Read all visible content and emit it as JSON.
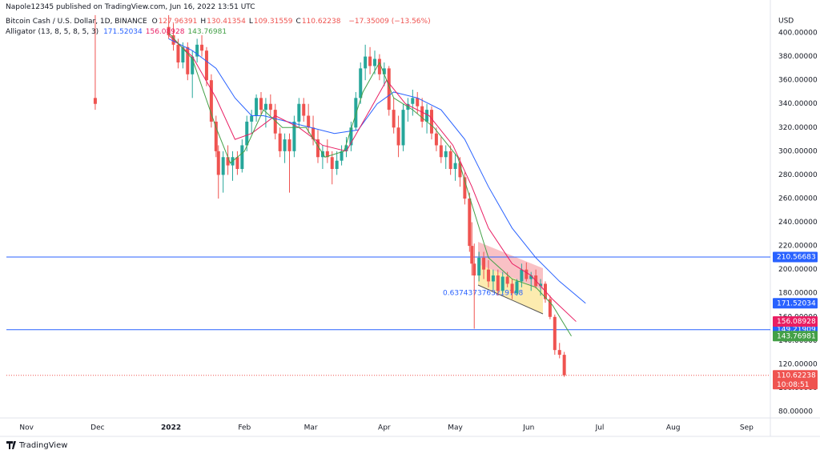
{
  "header": {
    "published": "Napole12345 published on TradingView.com, Jun 16, 2022 13:51 UTC",
    "symbol": "Bitcoin Cash / U.S. Dollar, 1D, BINANCE",
    "ohlc": [
      {
        "label": "O",
        "value": 127.96391
      },
      {
        "label": "H",
        "value": 130.41354
      },
      {
        "label": "L",
        "value": 109.31559
      },
      {
        "label": "C",
        "value": 110.62238
      }
    ],
    "change": "−17.35009 (−13.56%)",
    "indicator": "Alligator (13, 8, 5, 8, 5, 3)"
  },
  "footer": {
    "brand": "TradingView"
  },
  "chart_data": {
    "type": "candlestick",
    "currency": "USD",
    "xlim": [
      -8.5,
      314
    ],
    "ylim": [
      74.6,
      415.6
    ],
    "xticks": [
      {
        "value": 0,
        "label": "Nov"
      },
      {
        "value": 30,
        "label": "Dec"
      },
      {
        "value": 61,
        "label": "2022",
        "bold": true
      },
      {
        "value": 92,
        "label": "Feb"
      },
      {
        "value": 120,
        "label": "Mar"
      },
      {
        "value": 151,
        "label": "Apr"
      },
      {
        "value": 181,
        "label": "May"
      },
      {
        "value": 212,
        "label": "Jun"
      },
      {
        "value": 242,
        "label": "Jul"
      },
      {
        "value": 273,
        "label": "Aug"
      },
      {
        "value": 304,
        "label": "Sep"
      }
    ],
    "yticks": [
      {
        "value": 80,
        "label": "80.00000"
      },
      {
        "value": 100,
        "label": "100.00000"
      },
      {
        "value": 120,
        "label": "120.00000"
      },
      {
        "value": 140,
        "label": "140.00000"
      },
      {
        "value": 160,
        "label": "160.00000"
      },
      {
        "value": 180,
        "label": "180.00000"
      },
      {
        "value": 200,
        "label": "200.00000"
      },
      {
        "value": 220,
        "label": "220.00000"
      },
      {
        "value": 240,
        "label": "240.00000"
      },
      {
        "value": 260,
        "label": "260.00000"
      },
      {
        "value": 280,
        "label": "280.00000"
      },
      {
        "value": 300,
        "label": "300.00000"
      },
      {
        "value": 320,
        "label": "320.00000"
      },
      {
        "value": 340,
        "label": "340.00000"
      },
      {
        "value": 360,
        "label": "360.00000"
      },
      {
        "value": 380,
        "label": "380.00000"
      },
      {
        "value": 400,
        "label": "400.00000"
      }
    ],
    "up_color": "#26a69a",
    "down_color": "#ef5350",
    "candles": {
      "x": [
        29,
        60,
        62,
        64,
        66,
        68,
        70,
        72,
        74,
        76,
        78,
        80,
        81,
        83,
        85,
        87,
        89,
        91,
        93,
        95,
        97,
        99,
        101,
        103,
        105,
        107,
        109,
        111,
        113,
        115,
        117,
        119,
        121,
        123,
        125,
        127,
        129,
        131,
        133,
        135,
        137,
        139,
        141,
        143,
        145,
        147,
        149,
        151,
        153,
        155,
        157,
        159,
        161,
        163,
        165,
        167,
        169,
        171,
        173,
        175,
        177,
        179,
        181,
        183,
        185,
        187,
        188,
        189,
        191,
        193,
        195,
        197,
        199,
        201,
        203,
        205,
        207,
        209,
        211,
        213,
        215,
        217,
        219,
        221,
        223,
        225,
        227
      ],
      "open": [
        345,
        405,
        398,
        390,
        375,
        388,
        365,
        380,
        390,
        385,
        360,
        325,
        300,
        280,
        295,
        288,
        295,
        285,
        305,
        325,
        330,
        345,
        335,
        340,
        335,
        315,
        300,
        310,
        300,
        325,
        340,
        330,
        320,
        310,
        295,
        300,
        295,
        285,
        292,
        300,
        305,
        320,
        345,
        370,
        380,
        372,
        378,
        365,
        370,
        335,
        320,
        305,
        335,
        340,
        345,
        338,
        325,
        335,
        315,
        305,
        295,
        300,
        285,
        290,
        278,
        260,
        220,
        205,
        195,
        210,
        200,
        190,
        195,
        182,
        194,
        188,
        180,
        190,
        200,
        192,
        195,
        186,
        188,
        175,
        160,
        132,
        127.96391
      ],
      "high": [
        415,
        415,
        408,
        395,
        392,
        392,
        385,
        395,
        398,
        388,
        365,
        330,
        305,
        300,
        305,
        300,
        300,
        310,
        330,
        335,
        348,
        350,
        345,
        348,
        340,
        320,
        315,
        315,
        330,
        345,
        345,
        340,
        330,
        318,
        305,
        310,
        300,
        300,
        305,
        312,
        325,
        350,
        375,
        390,
        388,
        385,
        382,
        375,
        372,
        345,
        330,
        340,
        345,
        352,
        350,
        345,
        340,
        338,
        320,
        312,
        305,
        305,
        298,
        295,
        282,
        265,
        240,
        222,
        215,
        215,
        208,
        200,
        200,
        198,
        198,
        192,
        192,
        205,
        206,
        198,
        200,
        192,
        190,
        178,
        162,
        138,
        130.41354
      ],
      "low": [
        335,
        395,
        385,
        370,
        370,
        360,
        345,
        375,
        380,
        355,
        320,
        295,
        260,
        265,
        280,
        275,
        280,
        282,
        300,
        315,
        325,
        330,
        320,
        330,
        310,
        295,
        290,
        265,
        295,
        320,
        325,
        315,
        305,
        290,
        285,
        290,
        272,
        280,
        288,
        295,
        300,
        318,
        340,
        360,
        365,
        365,
        360,
        355,
        330,
        315,
        295,
        300,
        325,
        330,
        332,
        320,
        315,
        310,
        300,
        290,
        285,
        280,
        275,
        270,
        255,
        215,
        195,
        150,
        190,
        192,
        185,
        183,
        178,
        180,
        185,
        175,
        178,
        185,
        190,
        182,
        184,
        178,
        172,
        158,
        128,
        125,
        109.31559
      ],
      "close": [
        340,
        398,
        390,
        375,
        388,
        365,
        380,
        390,
        385,
        360,
        325,
        300,
        280,
        295,
        288,
        295,
        285,
        305,
        325,
        330,
        345,
        335,
        340,
        335,
        315,
        300,
        310,
        300,
        325,
        340,
        330,
        320,
        310,
        295,
        300,
        295,
        285,
        292,
        300,
        305,
        320,
        345,
        370,
        380,
        372,
        378,
        365,
        370,
        335,
        320,
        305,
        335,
        340,
        345,
        338,
        325,
        335,
        315,
        305,
        295,
        300,
        285,
        290,
        278,
        260,
        220,
        205,
        195,
        210,
        200,
        190,
        195,
        182,
        194,
        188,
        180,
        190,
        200,
        192,
        195,
        186,
        188,
        175,
        160,
        132,
        128,
        110.62238
      ]
    },
    "series": [
      {
        "name": "Jaw",
        "color": "#2962ff",
        "x": [
          60,
          70,
          80,
          88,
          95,
          100,
          110,
          120,
          130,
          140,
          148,
          155,
          165,
          175,
          185,
          195,
          205,
          215,
          225,
          236
        ],
        "values": [
          395,
          385,
          370,
          345,
          330,
          330,
          325,
          320,
          315,
          318,
          340,
          350,
          345,
          335,
          310,
          270,
          235,
          210,
          190,
          171.52034
        ]
      },
      {
        "name": "Teeth",
        "color": "#e91e63",
        "x": [
          60,
          70,
          80,
          88,
          95,
          105,
          115,
          125,
          135,
          145,
          152,
          160,
          170,
          180,
          188,
          195,
          205,
          213,
          222,
          232
        ],
        "values": [
          398,
          380,
          345,
          310,
          315,
          330,
          320,
          305,
          300,
          335,
          360,
          340,
          330,
          305,
          270,
          235,
          205,
          195,
          175,
          156.08928
        ]
      },
      {
        "name": "Lips",
        "color": "#43a047",
        "x": [
          60,
          70,
          80,
          86,
          92,
          100,
          108,
          118,
          126,
          134,
          142,
          149,
          155,
          163,
          172,
          182,
          188,
          195,
          205,
          215,
          222,
          230
        ],
        "values": [
          400,
          378,
          320,
          290,
          300,
          335,
          320,
          320,
          295,
          300,
          350,
          375,
          345,
          335,
          320,
          295,
          255,
          210,
          192,
          185,
          170,
          143.76981
        ]
      }
    ],
    "hlines": [
      {
        "value": 210.56683,
        "color": "#2962ff"
      },
      {
        "value": 149.21909,
        "color": "#2962ff"
      }
    ],
    "last_price": {
      "value": 110.62238,
      "countdown": "10:08:51",
      "color": "#ef5350"
    },
    "annotation": "0.6374373763219768"
  }
}
